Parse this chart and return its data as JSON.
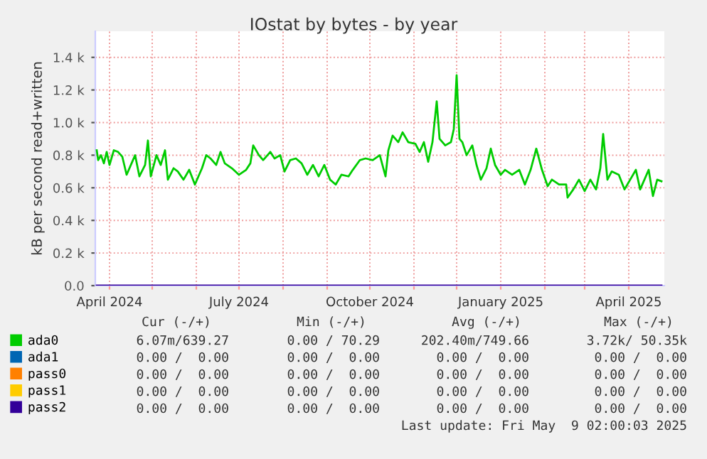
{
  "chart_data": {
    "type": "line",
    "title": "IOstat by bytes - by year",
    "ylabel": "kB per second read+written",
    "x": [
      "2024-03-23",
      "2024-03-24",
      "2024-03-26",
      "2024-03-28",
      "2024-03-30",
      "2024-04-01",
      "2024-04-04",
      "2024-04-07",
      "2024-04-10",
      "2024-04-13",
      "2024-04-16",
      "2024-04-19",
      "2024-04-22",
      "2024-04-26",
      "2024-04-28",
      "2024-04-30",
      "2024-05-04",
      "2024-05-07",
      "2024-05-10",
      "2024-05-12",
      "2024-05-16",
      "2024-05-19",
      "2024-05-23",
      "2024-05-27",
      "2024-05-31",
      "2024-06-05",
      "2024-06-08",
      "2024-06-11",
      "2024-06-15",
      "2024-06-18",
      "2024-06-21",
      "2024-06-26",
      "2024-07-01",
      "2024-07-06",
      "2024-07-09",
      "2024-07-11",
      "2024-07-15",
      "2024-07-18",
      "2024-07-23",
      "2024-07-26",
      "2024-07-30",
      "2024-08-02",
      "2024-08-06",
      "2024-08-10",
      "2024-08-14",
      "2024-08-18",
      "2024-08-22",
      "2024-08-26",
      "2024-08-30",
      "2024-09-03",
      "2024-09-07",
      "2024-09-11",
      "2024-09-16",
      "2024-09-19",
      "2024-09-24",
      "2024-09-28",
      "2024-10-03",
      "2024-10-08",
      "2024-10-12",
      "2024-10-14",
      "2024-10-17",
      "2024-10-21",
      "2024-10-24",
      "2024-10-28",
      "2024-11-02",
      "2024-11-05",
      "2024-11-08",
      "2024-11-11",
      "2024-11-14",
      "2024-11-17",
      "2024-11-19",
      "2024-11-23",
      "2024-11-27",
      "2024-11-29",
      "2024-12-01",
      "2024-12-03",
      "2024-12-05",
      "2024-12-08",
      "2024-12-12",
      "2024-12-15",
      "2024-12-18",
      "2024-12-22",
      "2024-12-25",
      "2024-12-28",
      "2025-01-01",
      "2025-01-04",
      "2025-01-09",
      "2025-01-14",
      "2025-01-18",
      "2025-01-22",
      "2025-01-26",
      "2025-01-30",
      "2025-02-03",
      "2025-02-06",
      "2025-02-11",
      "2025-02-16",
      "2025-02-17",
      "2025-02-21",
      "2025-02-25",
      "2025-03-01",
      "2025-03-05",
      "2025-03-09",
      "2025-03-12",
      "2025-03-14",
      "2025-03-17",
      "2025-03-20",
      "2025-03-25",
      "2025-03-29",
      "2025-04-02",
      "2025-04-06",
      "2025-04-09",
      "2025-04-12",
      "2025-04-15",
      "2025-04-18",
      "2025-04-21",
      "2025-04-24"
    ],
    "series": [
      {
        "name": "ada0",
        "color": "#00cc00",
        "values": [
          830,
          770,
          800,
          750,
          820,
          740,
          830,
          820,
          790,
          680,
          740,
          800,
          670,
          740,
          890,
          670,
          800,
          740,
          830,
          650,
          720,
          700,
          650,
          710,
          620,
          720,
          800,
          780,
          740,
          820,
          750,
          720,
          680,
          710,
          750,
          860,
          800,
          770,
          820,
          780,
          800,
          700,
          770,
          780,
          750,
          680,
          740,
          670,
          740,
          650,
          620,
          680,
          670,
          710,
          770,
          780,
          770,
          800,
          670,
          830,
          920,
          880,
          940,
          880,
          870,
          820,
          880,
          760,
          880,
          1130,
          900,
          860,
          880,
          960,
          1290,
          900,
          880,
          800,
          860,
          740,
          650,
          720,
          840,
          740,
          680,
          710,
          680,
          710,
          620,
          710,
          840,
          710,
          610,
          650,
          620,
          620,
          540,
          590,
          650,
          580,
          650,
          590,
          720,
          930,
          650,
          700,
          680,
          590,
          650,
          710,
          590,
          650,
          710,
          550,
          650,
          640
        ]
      },
      {
        "name": "ada1",
        "color": "#0066b3",
        "values": [
          null,
          null,
          null,
          null,
          null,
          null,
          null,
          null,
          null,
          null,
          null,
          null,
          null,
          null,
          null,
          null,
          null,
          null,
          null,
          null,
          null,
          null,
          null,
          null,
          null,
          null,
          null,
          null,
          null,
          null,
          null,
          null,
          null,
          null,
          null,
          null,
          null,
          null,
          null,
          null,
          null,
          null,
          null,
          null,
          null,
          null,
          null,
          null,
          null,
          null,
          null,
          null,
          null,
          null,
          null,
          null,
          null,
          null,
          null,
          null,
          null,
          null,
          null,
          null,
          null,
          null,
          null,
          null,
          null,
          null,
          null,
          null,
          null,
          null,
          null,
          null,
          null,
          null,
          null,
          null,
          null,
          null,
          null,
          null,
          null,
          null,
          null,
          null,
          null,
          null,
          null,
          null,
          null,
          null,
          null,
          null,
          null,
          null,
          null,
          null,
          null,
          null,
          null,
          null,
          null,
          null,
          null,
          null,
          null,
          null,
          null,
          null,
          null,
          null,
          null,
          null
        ]
      },
      {
        "name": "pass0",
        "color": "#ff8000",
        "values": [
          null,
          null,
          null,
          null,
          null,
          null,
          null,
          null,
          null,
          null,
          null,
          null,
          null,
          null,
          null,
          null,
          null,
          null,
          null,
          null,
          null,
          null,
          null,
          null,
          null,
          null,
          null,
          null,
          null,
          null,
          null,
          null,
          null,
          null,
          null,
          null,
          null,
          null,
          null,
          null,
          null,
          null,
          null,
          null,
          null,
          null,
          null,
          null,
          null,
          null,
          null,
          null,
          null,
          null,
          null,
          null,
          null,
          null,
          null,
          null,
          null,
          null,
          null,
          null,
          null,
          null,
          null,
          null,
          null,
          null,
          null,
          null,
          null,
          null,
          null,
          null,
          null,
          null,
          null,
          null,
          null,
          null,
          null,
          null,
          null,
          null,
          null,
          null,
          null,
          null,
          null,
          null,
          null,
          null,
          null,
          null,
          null,
          null,
          null,
          null,
          null,
          null,
          null,
          null,
          null,
          null,
          null,
          null,
          null,
          null,
          null,
          null,
          null,
          null,
          null,
          null
        ]
      },
      {
        "name": "pass1",
        "color": "#ffcc00",
        "values": [
          null,
          null,
          null,
          null,
          null,
          null,
          null,
          null,
          null,
          null,
          null,
          null,
          null,
          null,
          null,
          null,
          null,
          null,
          null,
          null,
          null,
          null,
          null,
          null,
          null,
          null,
          null,
          null,
          null,
          null,
          null,
          null,
          null,
          null,
          null,
          null,
          null,
          null,
          null,
          null,
          null,
          null,
          null,
          null,
          null,
          null,
          null,
          null,
          null,
          null,
          null,
          null,
          null,
          null,
          null,
          null,
          null,
          null,
          null,
          null,
          null,
          null,
          null,
          null,
          null,
          null,
          null,
          null,
          null,
          null,
          null,
          null,
          null,
          null,
          null,
          null,
          null,
          null,
          null,
          null,
          null,
          null,
          null,
          null,
          null,
          null,
          null,
          null,
          null,
          null,
          null,
          null,
          null,
          null,
          null,
          null,
          null,
          null,
          null,
          null,
          null,
          null,
          null,
          null,
          null,
          null,
          null,
          null,
          null,
          null,
          null,
          null,
          null,
          null,
          null,
          null
        ]
      },
      {
        "name": "pass2",
        "color": "#330099",
        "x": [
          "2024-03-23",
          "2025-04-24"
        ],
        "values": [
          0,
          0
        ]
      }
    ],
    "xlim": [
      "2024-03-22",
      "2025-04-26"
    ],
    "xticks": [
      {
        "value": "2024-04-01",
        "label": "April 2024"
      },
      {
        "value": "2024-05-01",
        "label": null
      },
      {
        "value": "2024-06-01",
        "label": null
      },
      {
        "value": "2024-07-01",
        "label": "July 2024"
      },
      {
        "value": "2024-08-01",
        "label": null
      },
      {
        "value": "2024-09-01",
        "label": null
      },
      {
        "value": "2024-10-01",
        "label": "October 2024"
      },
      {
        "value": "2024-11-01",
        "label": null
      },
      {
        "value": "2024-12-01",
        "label": null
      },
      {
        "value": "2025-01-01",
        "label": "January 2025"
      },
      {
        "value": "2025-02-01",
        "label": null
      },
      {
        "value": "2025-03-01",
        "label": null
      },
      {
        "value": "2025-04-01",
        "label": "April 2025"
      }
    ],
    "ylim": [
      0,
      1560
    ],
    "yticks": [
      {
        "value": 0,
        "label": "0.0"
      },
      {
        "value": 200,
        "label": "0.2 k"
      },
      {
        "value": 400,
        "label": "0.4 k"
      },
      {
        "value": 600,
        "label": "0.6 k"
      },
      {
        "value": 800,
        "label": "0.8 k"
      },
      {
        "value": 1000,
        "label": "1.0 k"
      },
      {
        "value": 1200,
        "label": "1.2 k"
      },
      {
        "value": 1400,
        "label": "1.4 k"
      }
    ],
    "grid": true,
    "legend": "bottom left",
    "marker": "none",
    "line_style": "solid",
    "annotations": [
      "Cur (-/+)",
      "Min (-/+)",
      "Avg (-/+)",
      "Max (-/+)",
      "6.07m/639.27",
      "0.00 / 70.29",
      "202.40m/749.66",
      "3.72k/ 50.35k",
      "0.00 /  0.00",
      "0.00 /  0.00",
      "0.00 /  0.00",
      "0.00 /  0.00",
      "0.00 /  0.00",
      "0.00 /  0.00",
      "0.00 /  0.00",
      "0.00 /  0.00",
      "0.00 /  0.00",
      "0.00 /  0.00",
      "0.00 /  0.00",
      "0.00 /  0.00",
      "0.00 /  0.00",
      "0.00 /  0.00",
      "0.00 /  0.00",
      "0.00 /  0.00",
      "Last update: Fri May  9 02:00:03 2025"
    ]
  }
}
